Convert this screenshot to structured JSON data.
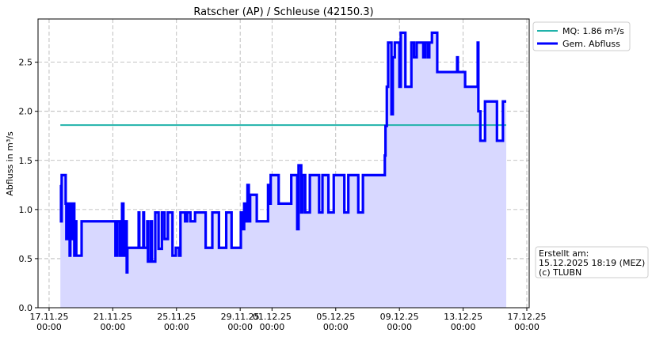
{
  "chart_data": {
    "type": "line",
    "title": "Ratscher (AP) / Schleuse (42150.3)",
    "xlabel": "",
    "ylabel": "Abfluss in m³/s",
    "xlim": [
      "2025-11-16T07:20",
      "2025-12-17T03:36"
    ],
    "ylim": [
      0,
      2.94
    ],
    "grid": true,
    "legend_placement": "outside-top-right",
    "x_ticks": [
      {
        "t": "2025-11-17T00:00",
        "label": [
          "17.11.25",
          "00:00"
        ]
      },
      {
        "t": "2025-11-21T00:00",
        "label": [
          "21.11.25",
          "00:00"
        ]
      },
      {
        "t": "2025-11-25T00:00",
        "label": [
          "25.11.25",
          "00:00"
        ]
      },
      {
        "t": "2025-11-29T00:00",
        "label": [
          "29.11.25",
          "00:00"
        ]
      },
      {
        "t": "2025-12-01T00:00",
        "label": [
          "01.12.25",
          "00:00"
        ]
      },
      {
        "t": "2025-12-05T00:00",
        "label": [
          "05.12.25",
          "00:00"
        ]
      },
      {
        "t": "2025-12-09T00:00",
        "label": [
          "09.12.25",
          "00:00"
        ]
      },
      {
        "t": "2025-12-13T00:00",
        "label": [
          "13.12.25",
          "00:00"
        ]
      },
      {
        "t": "2025-12-17T00:00",
        "label": [
          "17.12.25",
          "00:00"
        ]
      }
    ],
    "y_ticks": [
      {
        "v": 0,
        "label": "0.0"
      },
      {
        "v": 0.5,
        "label": "0.5"
      },
      {
        "v": 1,
        "label": "1.0"
      },
      {
        "v": 1.5,
        "label": "1.5"
      },
      {
        "v": 2,
        "label": "2.0"
      },
      {
        "v": 2.5,
        "label": "2.5"
      }
    ],
    "series": [
      {
        "name": "MQ: 1.86 m³/s",
        "color": "#20b2aa",
        "style": "constant",
        "value": 1.86,
        "x": [
          "2025-11-17T17:00",
          "2025-12-15T17:00"
        ]
      },
      {
        "name": "Gem. Abfluss",
        "color": "#0000ff",
        "fill": "#d8d8ff",
        "style": "steps-post",
        "points": [
          [
            "2025-11-17T17:00",
            1.25
          ],
          [
            "2025-11-17T18:00",
            0.88
          ],
          [
            "2025-11-17T19:00",
            1.35
          ],
          [
            "2025-11-18T01:00",
            1.06
          ],
          [
            "2025-11-18T02:00",
            0.7
          ],
          [
            "2025-11-18T05:00",
            1.06
          ],
          [
            "2025-11-18T07:00",
            0.53
          ],
          [
            "2025-11-18T08:00",
            1.06
          ],
          [
            "2025-11-18T11:00",
            0.7
          ],
          [
            "2025-11-18T13:00",
            1.06
          ],
          [
            "2025-11-18T14:00",
            0.53
          ],
          [
            "2025-11-18T15:00",
            0.88
          ],
          [
            "2025-11-18T17:00",
            0.53
          ],
          [
            "2025-11-19T01:00",
            0.88
          ],
          [
            "2025-11-21T04:00",
            0.53
          ],
          [
            "2025-11-21T07:00",
            0.88
          ],
          [
            "2025-11-21T11:00",
            0.53
          ],
          [
            "2025-11-21T14:00",
            1.06
          ],
          [
            "2025-11-21T16:00",
            0.53
          ],
          [
            "2025-11-21T19:00",
            0.88
          ],
          [
            "2025-11-21T21:00",
            0.36
          ],
          [
            "2025-11-21T22:00",
            0.61
          ],
          [
            "2025-11-22T15:00",
            0.97
          ],
          [
            "2025-11-22T16:00",
            0.61
          ],
          [
            "2025-11-22T22:00",
            0.97
          ],
          [
            "2025-11-22T23:00",
            0.61
          ],
          [
            "2025-11-23T04:00",
            0.88
          ],
          [
            "2025-11-23T05:00",
            0.47
          ],
          [
            "2025-11-23T09:00",
            0.88
          ],
          [
            "2025-11-23T11:00",
            0.47
          ],
          [
            "2025-11-23T16:00",
            0.97
          ],
          [
            "2025-11-23T21:00",
            0.6
          ],
          [
            "2025-11-24T02:00",
            0.97
          ],
          [
            "2025-11-24T06:00",
            0.7
          ],
          [
            "2025-11-24T11:00",
            0.97
          ],
          [
            "2025-11-24T18:00",
            0.53
          ],
          [
            "2025-11-24T23:00",
            0.61
          ],
          [
            "2025-11-25T04:00",
            0.53
          ],
          [
            "2025-11-25T06:00",
            0.97
          ],
          [
            "2025-11-25T13:00",
            0.88
          ],
          [
            "2025-11-25T16:00",
            0.97
          ],
          [
            "2025-11-25T21:00",
            0.88
          ],
          [
            "2025-11-26T04:00",
            0.97
          ],
          [
            "2025-11-26T20:00",
            0.61
          ],
          [
            "2025-11-27T06:00",
            0.97
          ],
          [
            "2025-11-27T16:00",
            0.61
          ],
          [
            "2025-11-28T03:00",
            0.97
          ],
          [
            "2025-11-28T11:00",
            0.61
          ],
          [
            "2025-11-29T01:00",
            0.97
          ],
          [
            "2025-11-29T03:00",
            0.8
          ],
          [
            "2025-11-29T06:00",
            1.06
          ],
          [
            "2025-11-29T08:00",
            0.88
          ],
          [
            "2025-11-29T11:00",
            1.25
          ],
          [
            "2025-11-29T13:00",
            0.88
          ],
          [
            "2025-11-29T15:00",
            1.15
          ],
          [
            "2025-11-30T01:00",
            0.88
          ],
          [
            "2025-11-30T18:00",
            1.25
          ],
          [
            "2025-11-30T20:00",
            1.06
          ],
          [
            "2025-11-30T22:00",
            1.35
          ],
          [
            "2025-12-01T10:00",
            1.06
          ],
          [
            "2025-12-02T05:00",
            1.35
          ],
          [
            "2025-12-02T14:00",
            0.8
          ],
          [
            "2025-12-02T16:00",
            1.45
          ],
          [
            "2025-12-02T20:00",
            0.97
          ],
          [
            "2025-12-02T22:00",
            1.35
          ],
          [
            "2025-12-03T02:00",
            0.97
          ],
          [
            "2025-12-03T09:00",
            1.35
          ],
          [
            "2025-12-03T23:00",
            0.97
          ],
          [
            "2025-12-04T04:00",
            1.35
          ],
          [
            "2025-12-04T13:00",
            0.97
          ],
          [
            "2025-12-04T21:00",
            1.35
          ],
          [
            "2025-12-05T13:00",
            0.97
          ],
          [
            "2025-12-05T19:00",
            1.35
          ],
          [
            "2025-12-06T10:00",
            0.97
          ],
          [
            "2025-12-06T17:00",
            1.35
          ],
          [
            "2025-12-08T02:00",
            1.55
          ],
          [
            "2025-12-08T03:00",
            1.85
          ],
          [
            "2025-12-08T05:00",
            2.25
          ],
          [
            "2025-12-08T07:00",
            2.7
          ],
          [
            "2025-12-08T12:00",
            1.97
          ],
          [
            "2025-12-08T14:00",
            2.55
          ],
          [
            "2025-12-08T17:00",
            2.7
          ],
          [
            "2025-12-09T00:00",
            2.25
          ],
          [
            "2025-12-09T02:00",
            2.8
          ],
          [
            "2025-12-09T09:00",
            2.25
          ],
          [
            "2025-12-09T18:00",
            2.7
          ],
          [
            "2025-12-09T22:00",
            2.55
          ],
          [
            "2025-12-10T02:00",
            2.7
          ],
          [
            "2025-12-10T12:00",
            2.55
          ],
          [
            "2025-12-10T15:00",
            2.7
          ],
          [
            "2025-12-10T19:00",
            2.55
          ],
          [
            "2025-12-10T21:00",
            2.7
          ],
          [
            "2025-12-11T01:00",
            2.8
          ],
          [
            "2025-12-11T09:00",
            2.4
          ],
          [
            "2025-12-12T15:00",
            2.55
          ],
          [
            "2025-12-12T16:00",
            2.4
          ],
          [
            "2025-12-13T03:00",
            2.25
          ],
          [
            "2025-12-13T22:00",
            2.7
          ],
          [
            "2025-12-13T23:00",
            2.0
          ],
          [
            "2025-12-14T02:00",
            1.7
          ],
          [
            "2025-12-14T09:00",
            2.1
          ],
          [
            "2025-12-15T03:00",
            1.7
          ],
          [
            "2025-12-15T12:00",
            2.1
          ],
          [
            "2025-12-15T17:00",
            2.1
          ]
        ]
      }
    ],
    "annotation": [
      "Erstellt am:",
      "15.12.2025 18:19 (MEZ)",
      "(c) TLUBN"
    ]
  }
}
